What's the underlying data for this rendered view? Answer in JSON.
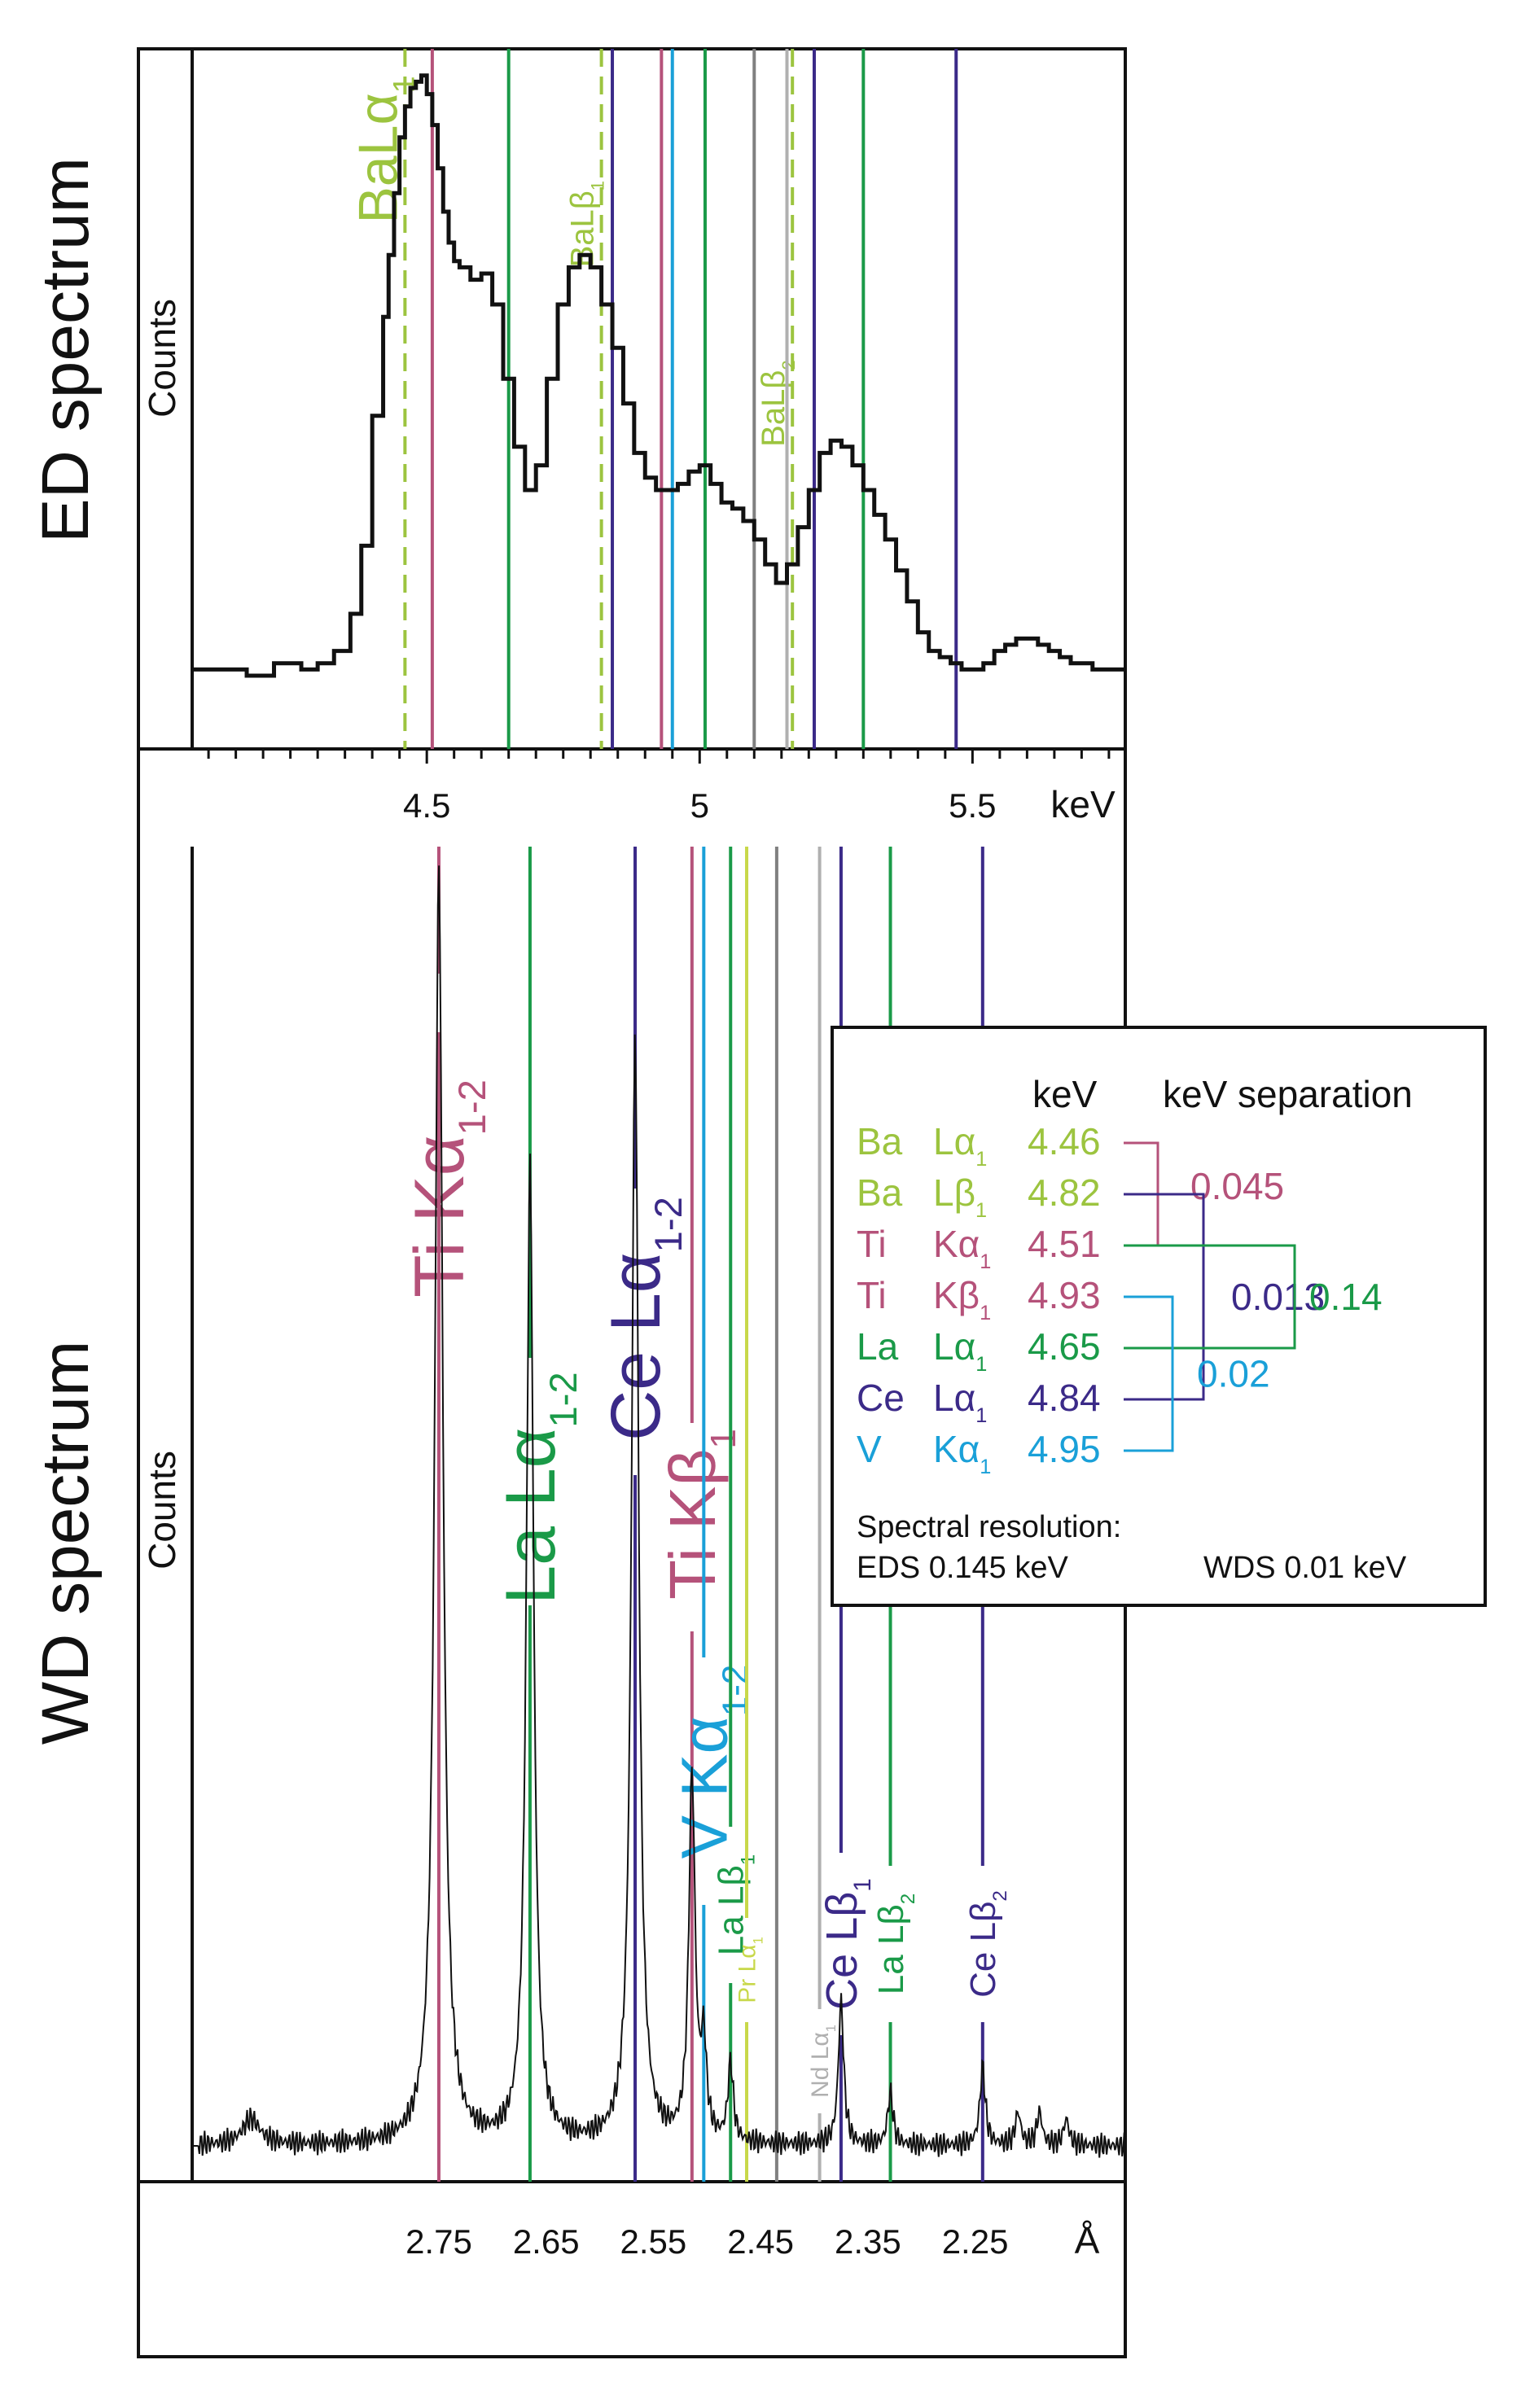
{
  "titles": {
    "ed": "ED spectrum",
    "wd": "WD spectrum"
  },
  "chart_data": [
    {
      "id": "ed",
      "type": "line",
      "title": "ED spectrum",
      "ylabel": "Counts",
      "xlabel": "keV",
      "xlim": [
        4.07,
        5.78
      ],
      "ylim": [
        0,
        1
      ],
      "x_ticks": [
        4.5,
        5.0,
        5.5
      ],
      "x_tick_labels": [
        "4.5",
        "5",
        "5.5"
      ],
      "x": [
        4.07,
        4.12,
        4.17,
        4.22,
        4.27,
        4.3,
        4.33,
        4.36,
        4.38,
        4.4,
        4.42,
        4.43,
        4.44,
        4.45,
        4.46,
        4.47,
        4.48,
        4.49,
        4.5,
        4.51,
        4.52,
        4.53,
        4.54,
        4.55,
        4.56,
        4.58,
        4.6,
        4.62,
        4.64,
        4.66,
        4.68,
        4.7,
        4.72,
        4.74,
        4.76,
        4.78,
        4.8,
        4.82,
        4.84,
        4.86,
        4.88,
        4.9,
        4.92,
        4.94,
        4.96,
        4.98,
        5.0,
        5.02,
        5.04,
        5.06,
        5.08,
        5.1,
        5.12,
        5.14,
        5.16,
        5.18,
        5.2,
        5.22,
        5.24,
        5.26,
        5.28,
        5.3,
        5.32,
        5.34,
        5.36,
        5.38,
        5.4,
        5.42,
        5.44,
        5.46,
        5.48,
        5.5,
        5.52,
        5.54,
        5.56,
        5.58,
        5.6,
        5.62,
        5.64,
        5.66,
        5.68,
        5.7,
        5.72,
        5.74,
        5.76,
        5.78
      ],
      "y": [
        0.01,
        0.01,
        0.0,
        0.02,
        0.01,
        0.02,
        0.04,
        0.1,
        0.21,
        0.42,
        0.58,
        0.68,
        0.78,
        0.87,
        0.92,
        0.95,
        0.96,
        0.97,
        0.94,
        0.89,
        0.82,
        0.75,
        0.7,
        0.67,
        0.66,
        0.64,
        0.65,
        0.6,
        0.48,
        0.37,
        0.3,
        0.34,
        0.48,
        0.6,
        0.66,
        0.68,
        0.66,
        0.6,
        0.53,
        0.44,
        0.36,
        0.32,
        0.3,
        0.3,
        0.31,
        0.33,
        0.34,
        0.31,
        0.28,
        0.27,
        0.25,
        0.22,
        0.18,
        0.15,
        0.18,
        0.24,
        0.3,
        0.36,
        0.38,
        0.37,
        0.34,
        0.3,
        0.26,
        0.22,
        0.17,
        0.12,
        0.07,
        0.04,
        0.03,
        0.02,
        0.01,
        0.01,
        0.02,
        0.04,
        0.05,
        0.06,
        0.06,
        0.05,
        0.04,
        0.03,
        0.02,
        0.02,
        0.01,
        0.01,
        0.01,
        0.01
      ]
    },
    {
      "id": "wd",
      "type": "line",
      "title": "WD spectrum",
      "ylabel": "Counts",
      "xlabel": "Å",
      "xlim": [
        2.98,
        2.11
      ],
      "ylim": [
        0,
        1
      ],
      "x_ticks": [
        2.75,
        2.65,
        2.55,
        2.45,
        2.35,
        2.25
      ],
      "x_tick_labels": [
        "2.75",
        "2.65",
        "2.55",
        "2.45",
        "2.35",
        "2.25"
      ],
      "peaks": [
        {
          "x": 2.925,
          "h": 0.02,
          "w": 0.01
        },
        {
          "x": 2.75,
          "h": 0.98,
          "w": 0.0045
        },
        {
          "x": 2.665,
          "h": 0.75,
          "w": 0.004
        },
        {
          "x": 2.567,
          "h": 0.85,
          "w": 0.004
        },
        {
          "x": 2.514,
          "h": 0.28,
          "w": 0.0035
        },
        {
          "x": 2.503,
          "h": 0.07,
          "w": 0.003
        },
        {
          "x": 2.478,
          "h": 0.06,
          "w": 0.003
        },
        {
          "x": 2.375,
          "h": 0.11,
          "w": 0.003
        },
        {
          "x": 2.329,
          "h": 0.04,
          "w": 0.003
        },
        {
          "x": 2.243,
          "h": 0.06,
          "w": 0.003
        },
        {
          "x": 2.21,
          "h": 0.025,
          "w": 0.003
        },
        {
          "x": 2.19,
          "h": 0.025,
          "w": 0.003
        },
        {
          "x": 2.165,
          "h": 0.02,
          "w": 0.003
        }
      ]
    }
  ],
  "ed_lines": [
    {
      "name": "BaLa1",
      "label": "BaLα",
      "sub": "1",
      "x": 4.46,
      "color": "#9cc43f",
      "dashed": true,
      "label_y_frac": 0.15,
      "label_size": 68
    },
    {
      "name": "TiKa",
      "label": "",
      "sub": "",
      "x": 4.51,
      "color": "#b5527a",
      "dashed": false
    },
    {
      "name": "LaLa",
      "label": "",
      "sub": "",
      "x": 4.65,
      "color": "#1a9a48",
      "dashed": false
    },
    {
      "name": "BaLb1",
      "label": "BaLβ",
      "sub": "1",
      "x": 4.82,
      "color": "#9cc43f",
      "dashed": true,
      "label_y_frac": 0.27,
      "label_size": 40
    },
    {
      "name": "CeLa",
      "label": "",
      "sub": "",
      "x": 4.84,
      "color": "#3b2a88",
      "dashed": false
    },
    {
      "name": "TiKb",
      "label": "",
      "sub": "",
      "x": 4.93,
      "color": "#b5527a",
      "dashed": false
    },
    {
      "name": "VKa",
      "label": "",
      "sub": "",
      "x": 4.95,
      "color": "#1aa0d8",
      "dashed": false
    },
    {
      "name": "LaLb1",
      "label": "",
      "sub": "",
      "x": 5.01,
      "color": "#1a9a48",
      "dashed": false
    },
    {
      "name": "PrLa",
      "label": "",
      "sub": "",
      "x": 5.1,
      "color": "#808080",
      "dashed": false
    },
    {
      "name": "BaLb2",
      "label": "BaLβ",
      "sub": "2",
      "x": 5.17,
      "color": "#9cc43f",
      "dashed": true,
      "label_y_frac": 0.56,
      "label_size": 40
    },
    {
      "name": "NdLa",
      "label": "",
      "sub": "",
      "x": 5.16,
      "color": "#b0b0b0",
      "dashed": false
    },
    {
      "name": "CeLb1",
      "label": "",
      "sub": "",
      "x": 5.21,
      "color": "#3b2a88",
      "dashed": false
    },
    {
      "name": "LaLb2",
      "label": "",
      "sub": "",
      "x": 5.3,
      "color": "#1a9a48",
      "dashed": false
    },
    {
      "name": "CeLb2",
      "label": "",
      "sub": "",
      "x": 5.47,
      "color": "#3b2a88",
      "dashed": false
    }
  ],
  "wd_lines": [
    {
      "name": "TiKa",
      "label": "Ti Kα",
      "sub": "1-2",
      "x": 2.75,
      "color": "#b5527a",
      "label_size": 86,
      "label_y_frac": 0.25,
      "gap_top": 0.085,
      "gap_bottom": 0.13
    },
    {
      "name": "LaLa",
      "label": "La Lα",
      "sub": "1-2",
      "x": 2.665,
      "color": "#1a9a48",
      "label_size": 86,
      "label_y_frac": 0.48,
      "gap_top": 0.38,
      "gap_bottom": 0.57
    },
    {
      "name": "CeLa",
      "label": "Ce Lα",
      "sub": "1-2",
      "x": 2.567,
      "color": "#3b2a88",
      "label_size": 86,
      "label_y_frac": 0.35,
      "gap_top": 0.25,
      "gap_bottom": 0.47
    },
    {
      "name": "TiKb",
      "label": "Ti Kβ",
      "sub": "1",
      "x": 2.514,
      "color": "#b5527a",
      "label_size": 80,
      "label_y_frac": 0.5,
      "gap_top": 0.43,
      "gap_bottom": 0.59
    },
    {
      "name": "VKa",
      "label": "V Kα",
      "sub": "1-2",
      "x": 2.503,
      "color": "#1aa0d8",
      "label_size": 80,
      "label_y_frac": 0.69,
      "gap_top": 0.61,
      "gap_bottom": 0.8
    },
    {
      "name": "LaLb1",
      "label": "La Lβ",
      "sub": "1",
      "x": 2.478,
      "color": "#1a9a48",
      "label_size": 44,
      "label_y_frac": 0.8,
      "gap_top": 0.74,
      "gap_bottom": 0.86
    },
    {
      "name": "PrLa",
      "label": "Pr Lα",
      "sub": "1",
      "x": 2.463,
      "color": "#c8d84a",
      "label_size": 30,
      "label_y_frac": 0.85,
      "gap_top": 0.81,
      "gap_bottom": 0.89
    },
    {
      "name": "GrayLine",
      "label": "",
      "sub": "",
      "x": 2.435,
      "color": "#808080",
      "label_size": 0,
      "label_y_frac": 0,
      "gap_top": 0,
      "gap_bottom": 0
    },
    {
      "name": "NdLa",
      "label": "Nd Lα",
      "sub": "1",
      "x": 2.395,
      "color": "#b0b0b0",
      "label_size": 30,
      "label_y_frac": 0.92,
      "gap_top": 0.88,
      "gap_bottom": 0.96
    },
    {
      "name": "CeLb1",
      "label": "Ce Lβ",
      "sub": "1",
      "x": 2.375,
      "color": "#3b2a88",
      "label_size": 54,
      "label_y_frac": 0.83,
      "gap_top": 0.76,
      "gap_bottom": 0.9
    },
    {
      "name": "LaLb2",
      "label": "La Lβ",
      "sub": "2",
      "x": 2.329,
      "color": "#1a9a48",
      "label_size": 44,
      "label_y_frac": 0.83,
      "gap_top": 0.77,
      "gap_bottom": 0.89
    },
    {
      "name": "CeLb2",
      "label": "Ce Lβ",
      "sub": "2",
      "x": 2.243,
      "color": "#3b2a88",
      "label_size": 44,
      "label_y_frac": 0.83,
      "gap_top": 0.77,
      "gap_bottom": 0.89
    }
  ],
  "legend": {
    "header_kev": "keV",
    "header_sep": "keV separation",
    "rows": [
      {
        "el": "Ba",
        "line": "Lα",
        "sub": "1",
        "kev": "4.46",
        "color": "#9cc43f"
      },
      {
        "el": "Ba",
        "line": "Lβ",
        "sub": "1",
        "kev": "4.82",
        "color": "#9cc43f"
      },
      {
        "el": "Ti",
        "line": "Kα",
        "sub": "1",
        "kev": "4.51",
        "color": "#b5527a"
      },
      {
        "el": "Ti",
        "line": "Kβ",
        "sub": "1",
        "kev": "4.93",
        "color": "#b5527a"
      },
      {
        "el": "La",
        "line": "Lα",
        "sub": "1",
        "kev": "4.65",
        "color": "#1a9a48"
      },
      {
        "el": "Ce",
        "line": "Lα",
        "sub": "1",
        "kev": "4.84",
        "color": "#3b2a88"
      },
      {
        "el": "V",
        "line": "Kα",
        "sub": "1",
        "kev": "4.95",
        "color": "#1aa0d8"
      }
    ],
    "separations": [
      {
        "value": "0.045",
        "color": "#b5527a",
        "from": 0,
        "to": 2
      },
      {
        "value": "0.013",
        "color": "#3b2a88",
        "from": 1,
        "to": 5
      },
      {
        "value": "0.14",
        "color": "#1a9a48",
        "from": 2,
        "to": 4
      },
      {
        "value": "0.02",
        "color": "#1aa0d8",
        "from": 3,
        "to": 6
      }
    ],
    "resolution_title": "Spectral resolution:",
    "resolution_eds": "EDS 0.145 keV",
    "resolution_wds": "WDS 0.01 keV"
  }
}
